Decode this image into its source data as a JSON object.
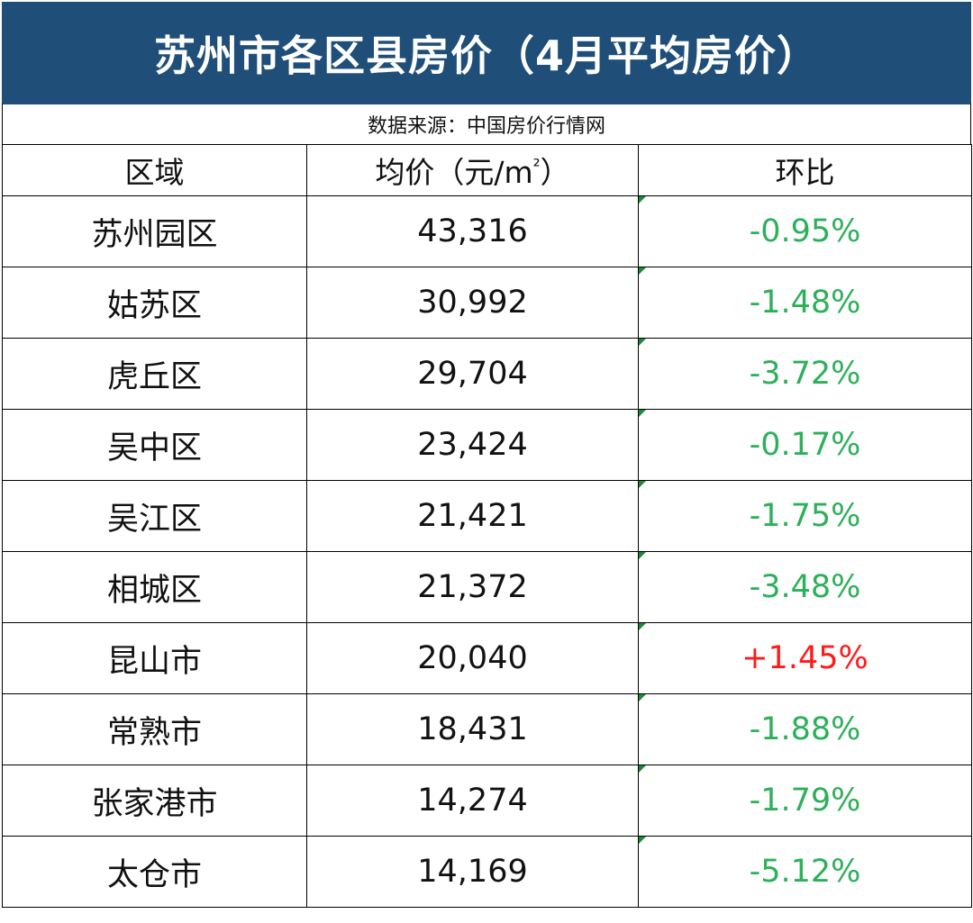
{
  "title": "苏州市各区县房价（4月平均房价）",
  "source": "数据来源：中国房价行情网",
  "headers": {
    "region": "区域",
    "price_prefix": "均价（元/m",
    "price_sup": "²",
    "price_suffix": "）",
    "change": "环比"
  },
  "rows": [
    {
      "region": "苏州园区",
      "price": "43,316",
      "change": "-0.95%",
      "trend": "down"
    },
    {
      "region": "姑苏区",
      "price": "30,992",
      "change": "-1.48%",
      "trend": "down"
    },
    {
      "region": "虎丘区",
      "price": "29,704",
      "change": "-3.72%",
      "trend": "down"
    },
    {
      "region": "吴中区",
      "price": "23,424",
      "change": "-0.17%",
      "trend": "down"
    },
    {
      "region": "吴江区",
      "price": "21,421",
      "change": "-1.75%",
      "trend": "down"
    },
    {
      "region": "相城区",
      "price": "21,372",
      "change": "-3.48%",
      "trend": "down"
    },
    {
      "region": "昆山市",
      "price": "20,040",
      "change": "+1.45%",
      "trend": "up"
    },
    {
      "region": "常熟市",
      "price": "18,431",
      "change": "-1.88%",
      "trend": "down"
    },
    {
      "region": "张家港市",
      "price": "14,274",
      "change": "-1.79%",
      "trend": "down"
    },
    {
      "region": "太仓市",
      "price": "14,169",
      "change": "-5.12%",
      "trend": "down"
    }
  ],
  "colors": {
    "title_bg": "#1f4e79",
    "negative": "#2db05a",
    "positive": "#ff1a1a"
  }
}
